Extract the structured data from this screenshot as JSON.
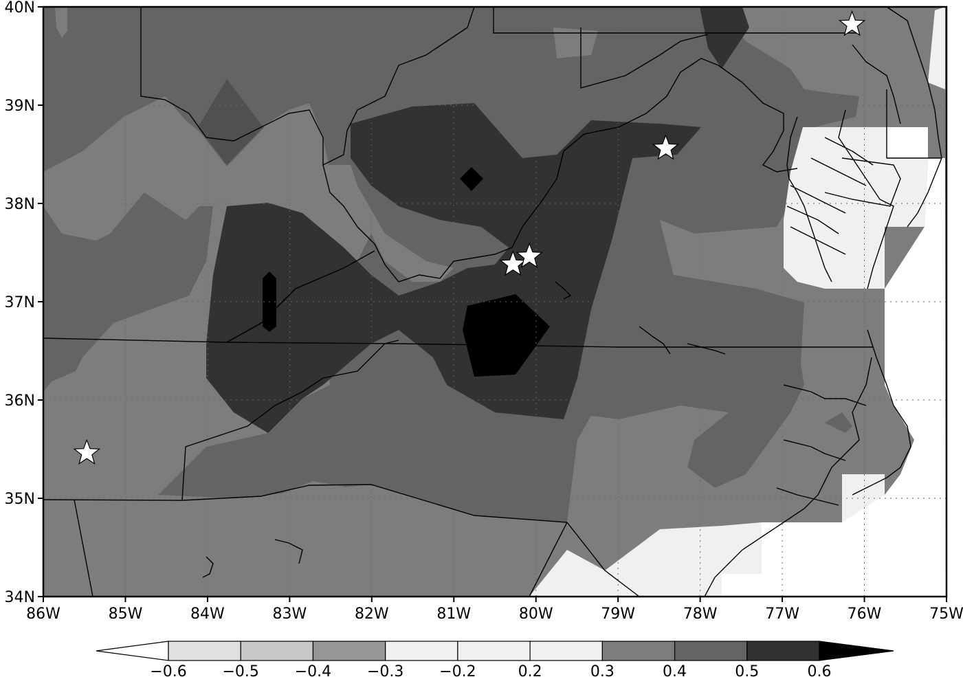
{
  "map": {
    "lat_labels": [
      "40N",
      "39N",
      "38N",
      "37N",
      "36N",
      "35N",
      "34N"
    ],
    "lon_labels": [
      "86W",
      "85W",
      "84W",
      "83W",
      "82W",
      "81W",
      "80W",
      "79W",
      "78W",
      "77W",
      "76W",
      "75W"
    ],
    "extent": {
      "lon_min": -86,
      "lon_max": -75,
      "lat_min": 34,
      "lat_max": 40
    },
    "grid": "dotted",
    "stations": [
      {
        "lon": -76.15,
        "lat": 39.82
      },
      {
        "lon": -78.42,
        "lat": 38.56
      },
      {
        "lon": -80.28,
        "lat": 37.38
      },
      {
        "lon": -80.08,
        "lat": 37.46
      },
      {
        "lon": -85.47,
        "lat": 35.46
      }
    ],
    "station_symbol": "white-star-icon"
  },
  "colorbar": {
    "labels": [
      "−0.6",
      "−0.5",
      "−0.4",
      "−0.3",
      "−0.2",
      "0.2",
      "0.3",
      "0.4",
      "0.5",
      "0.6"
    ],
    "bins": [
      {
        "color": "#e1e1e1"
      },
      {
        "color": "#c8c8c8"
      },
      {
        "color": "#969696"
      },
      {
        "color": "#f0f0f0"
      },
      {
        "color": "#f0f0f0"
      },
      {
        "color": "#f0f0f0"
      },
      {
        "color": "#7d7d7d"
      },
      {
        "color": "#646464"
      },
      {
        "color": "#323232"
      }
    ],
    "under_color": "#ffffff",
    "over_color": "#000000"
  },
  "shade_colors": {
    "lt0_2": "#f0f0f0",
    "c0_3": "#7d7d7d",
    "c0_4": "#646464",
    "c0_5": "#323232",
    "gt0_6": "#000000",
    "ocean": "#ffffff"
  }
}
